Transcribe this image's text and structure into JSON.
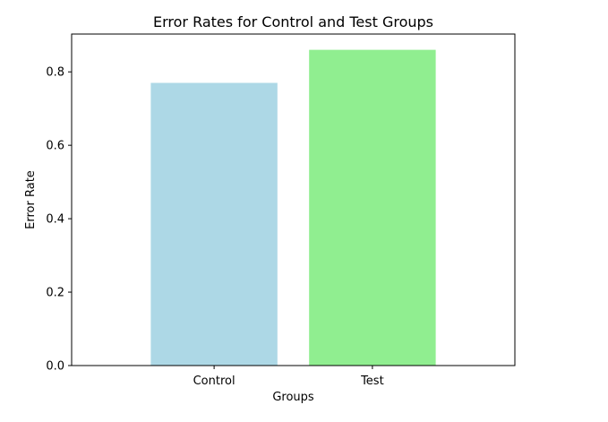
{
  "chart_data": {
    "type": "bar",
    "title": "Error Rates for Control and Test Groups",
    "xlabel": "Groups",
    "ylabel": "Error Rate",
    "categories": [
      "Control",
      "Test"
    ],
    "values": [
      0.77,
      0.86
    ],
    "colors": [
      "#add8e6",
      "#90ee90"
    ],
    "ylim": [
      0,
      0.903
    ],
    "yticks": [
      0.0,
      0.2,
      0.4,
      0.6,
      0.8
    ],
    "ytick_labels": [
      "0.0",
      "0.2",
      "0.4",
      "0.6",
      "0.8"
    ],
    "grid": false,
    "legend": "none"
  }
}
